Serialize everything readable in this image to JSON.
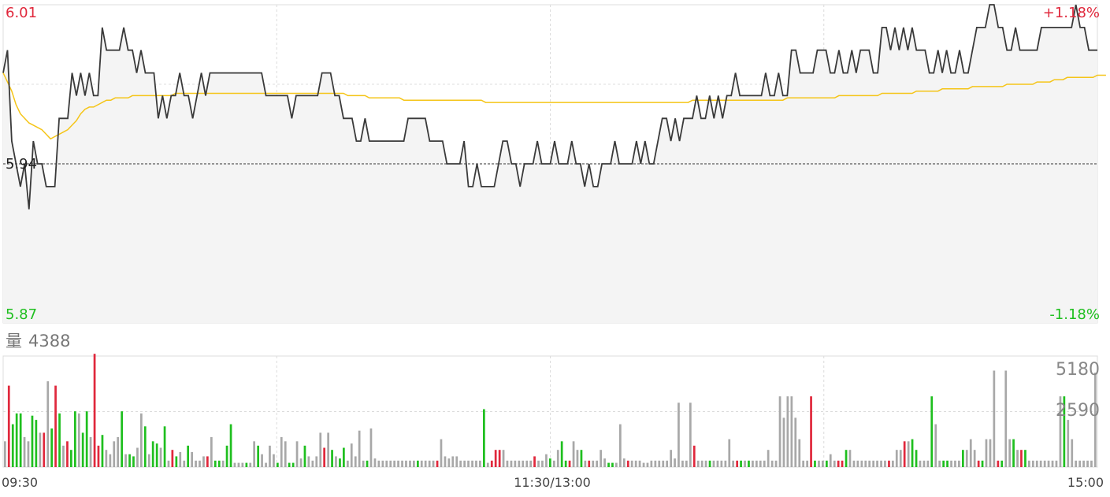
{
  "colors": {
    "up": "#e0283c",
    "down": "#1fbf1f",
    "neutral": "#a8a8a8",
    "price_line": "#3a3a3a",
    "avg_line": "#f5c518",
    "area_fill": "#f4f4f4",
    "grid": "#dcdcdc"
  },
  "chart_data": [
    {
      "type": "line",
      "name": "intraday-price",
      "ymax_label": "6.01",
      "ymin_label": "5.87",
      "ref_label": "5.94",
      "pct_up_label": "+1.18%",
      "pct_down_label": "-1.18%",
      "ylim": [
        5.87,
        6.01
      ],
      "prev_close": 5.94,
      "x_ticks": [
        "09:30",
        "11:30/13:00",
        "15:00"
      ],
      "price": [
        5.98,
        5.99,
        5.95,
        5.94,
        5.93,
        5.94,
        5.92,
        5.95,
        5.94,
        5.94,
        5.93,
        5.93,
        5.93,
        5.96,
        5.96,
        5.96,
        5.98,
        5.97,
        5.98,
        5.97,
        5.98,
        5.97,
        5.97,
        6.0,
        5.99,
        5.99,
        5.99,
        5.99,
        6.0,
        5.99,
        5.99,
        5.98,
        5.99,
        5.98,
        5.98,
        5.98,
        5.96,
        5.97,
        5.96,
        5.97,
        5.97,
        5.98,
        5.97,
        5.97,
        5.96,
        5.97,
        5.98,
        5.97,
        5.98,
        5.98,
        5.98,
        5.98,
        5.98,
        5.98,
        5.98,
        5.98,
        5.98,
        5.98,
        5.98,
        5.98,
        5.98,
        5.97,
        5.97,
        5.97,
        5.97,
        5.97,
        5.97,
        5.96,
        5.97,
        5.97,
        5.97,
        5.97,
        5.97,
        5.97,
        5.98,
        5.98,
        5.98,
        5.97,
        5.97,
        5.96,
        5.96,
        5.96,
        5.95,
        5.95,
        5.96,
        5.95,
        5.95,
        5.95,
        5.95,
        5.95,
        5.95,
        5.95,
        5.95,
        5.95,
        5.96,
        5.96,
        5.96,
        5.96,
        5.96,
        5.95,
        5.95,
        5.95,
        5.95,
        5.94,
        5.94,
        5.94,
        5.94,
        5.95,
        5.93,
        5.93,
        5.94,
        5.93,
        5.93,
        5.93,
        5.93,
        5.94,
        5.95,
        5.95,
        5.94,
        5.94,
        5.93,
        5.94,
        5.94,
        5.94,
        5.95,
        5.94,
        5.94,
        5.94,
        5.95,
        5.94,
        5.94,
        5.94,
        5.95,
        5.94,
        5.94,
        5.93,
        5.94,
        5.93,
        5.93,
        5.94,
        5.94,
        5.94,
        5.95,
        5.94,
        5.94,
        5.94,
        5.94,
        5.95,
        5.94,
        5.95,
        5.94,
        5.94,
        5.95,
        5.96,
        5.96,
        5.95,
        5.96,
        5.95,
        5.96,
        5.96,
        5.96,
        5.97,
        5.96,
        5.96,
        5.97,
        5.96,
        5.97,
        5.96,
        5.97,
        5.97,
        5.98,
        5.97,
        5.97,
        5.97,
        5.97,
        5.97,
        5.97,
        5.98,
        5.97,
        5.97,
        5.98,
        5.97,
        5.97,
        5.99,
        5.99,
        5.98,
        5.98,
        5.98,
        5.98,
        5.99,
        5.99,
        5.99,
        5.98,
        5.98,
        5.99,
        5.98,
        5.98,
        5.99,
        5.98,
        5.99,
        5.99,
        5.99,
        5.98,
        5.98,
        6.0,
        6.0,
        5.99,
        6.0,
        5.99,
        6.0,
        5.99,
        6.0,
        5.99,
        5.99,
        5.99,
        5.98,
        5.98,
        5.99,
        5.98,
        5.99,
        5.98,
        5.98,
        5.99,
        5.98,
        5.98,
        5.99,
        6.0,
        6.0,
        6.0,
        6.01,
        6.01,
        6.0,
        6.0,
        5.99,
        5.99,
        6.0,
        5.99,
        5.99,
        5.99,
        5.99,
        5.99,
        6.0,
        6.0,
        6.0,
        6.0,
        6.0,
        6.0,
        6.0,
        6.0,
        6.01,
        6.0,
        6.0,
        5.99,
        5.99,
        5.99
      ],
      "avg": [
        5.98,
        5.976,
        5.972,
        5.966,
        5.962,
        5.96,
        5.958,
        5.957,
        5.956,
        5.955,
        5.953,
        5.951,
        5.952,
        5.953,
        5.954,
        5.955,
        5.957,
        5.959,
        5.962,
        5.964,
        5.965,
        5.965,
        5.966,
        5.967,
        5.968,
        5.968,
        5.969,
        5.969,
        5.969,
        5.969,
        5.97,
        5.97,
        5.97,
        5.97,
        5.97,
        5.97,
        5.97,
        5.97,
        5.97,
        5.97,
        5.971,
        5.971,
        5.971,
        5.971,
        5.971,
        5.971,
        5.971,
        5.971,
        5.971,
        5.971,
        5.971,
        5.971,
        5.971,
        5.971,
        5.971,
        5.971,
        5.971,
        5.971,
        5.971,
        5.971,
        5.971,
        5.971,
        5.971,
        5.971,
        5.971,
        5.971,
        5.971,
        5.971,
        5.971,
        5.971,
        5.971,
        5.971,
        5.971,
        5.971,
        5.971,
        5.971,
        5.971,
        5.971,
        5.971,
        5.971,
        5.97,
        5.97,
        5.97,
        5.97,
        5.97,
        5.969,
        5.969,
        5.969,
        5.969,
        5.969,
        5.969,
        5.969,
        5.969,
        5.968,
        5.968,
        5.968,
        5.968,
        5.968,
        5.968,
        5.968,
        5.968,
        5.968,
        5.968,
        5.968,
        5.968,
        5.968,
        5.968,
        5.968,
        5.968,
        5.968,
        5.968,
        5.968,
        5.967,
        5.967,
        5.967,
        5.967,
        5.967,
        5.967,
        5.967,
        5.967,
        5.967,
        5.967,
        5.967,
        5.967,
        5.967,
        5.967,
        5.967,
        5.967,
        5.967,
        5.967,
        5.967,
        5.967,
        5.967,
        5.967,
        5.967,
        5.967,
        5.967,
        5.967,
        5.967,
        5.967,
        5.967,
        5.967,
        5.967,
        5.967,
        5.967,
        5.967,
        5.967,
        5.967,
        5.967,
        5.967,
        5.967,
        5.967,
        5.967,
        5.967,
        5.967,
        5.967,
        5.967,
        5.967,
        5.967,
        5.967,
        5.968,
        5.968,
        5.968,
        5.968,
        5.968,
        5.968,
        5.968,
        5.968,
        5.968,
        5.968,
        5.968,
        5.968,
        5.968,
        5.968,
        5.968,
        5.968,
        5.968,
        5.968,
        5.968,
        5.968,
        5.968,
        5.968,
        5.969,
        5.969,
        5.969,
        5.969,
        5.969,
        5.969,
        5.969,
        5.969,
        5.969,
        5.969,
        5.969,
        5.969,
        5.97,
        5.97,
        5.97,
        5.97,
        5.97,
        5.97,
        5.97,
        5.97,
        5.97,
        5.97,
        5.971,
        5.971,
        5.971,
        5.971,
        5.971,
        5.971,
        5.971,
        5.971,
        5.972,
        5.972,
        5.972,
        5.972,
        5.972,
        5.972,
        5.973,
        5.973,
        5.973,
        5.973,
        5.973,
        5.973,
        5.973,
        5.974,
        5.974,
        5.974,
        5.974,
        5.974,
        5.974,
        5.974,
        5.974,
        5.975,
        5.975,
        5.975,
        5.975,
        5.975,
        5.975,
        5.975,
        5.976,
        5.976,
        5.976,
        5.976,
        5.977,
        5.977,
        5.977,
        5.978,
        5.978,
        5.978,
        5.978,
        5.978,
        5.978,
        5.978,
        5.979,
        5.979,
        5.979
      ]
    },
    {
      "type": "bar",
      "name": "intraday-volume",
      "label_prefix": "量",
      "latest_volume_label": "4388",
      "y_ticks": [
        "5180",
        "2590"
      ],
      "ylim": [
        0,
        5180
      ],
      "volume": [
        1200,
        3800,
        2000,
        2500,
        2500,
        1400,
        1200,
        2400,
        2200,
        1600,
        1600,
        4000,
        1800,
        3800,
        2500,
        1000,
        1200,
        800,
        2600,
        2500,
        1600,
        2600,
        1400,
        5300,
        1000,
        1500,
        800,
        600,
        1200,
        1400,
        2600,
        600,
        600,
        500,
        900,
        2500,
        1900,
        600,
        1200,
        1100,
        900,
        1900,
        300,
        800,
        500,
        700,
        300,
        1000,
        700,
        300,
        300,
        500,
        500,
        1400,
        300,
        300,
        300,
        1000,
        2000,
        200,
        200,
        200,
        200,
        200,
        1200,
        1000,
        600,
        200,
        1000,
        600,
        200,
        1400,
        1200,
        200,
        200,
        1200,
        400,
        1000,
        500,
        300,
        500,
        1600,
        900,
        1600,
        800,
        500,
        400,
        900,
        300,
        1100,
        500,
        1700,
        300,
        300,
        1800,
        400,
        300,
        300,
        300,
        300,
        300,
        300,
        300,
        300,
        300,
        300,
        300,
        300,
        300,
        300,
        300,
        300,
        1300,
        500,
        400,
        500,
        500,
        300,
        300,
        300,
        300,
        300,
        300,
        2700,
        200,
        300,
        800,
        800,
        800,
        300,
        300,
        300,
        300,
        300,
        300,
        300,
        500,
        300,
        300,
        600,
        400,
        300,
        800,
        1200,
        300,
        300,
        1200,
        800,
        800,
        300,
        300,
        300,
        300,
        800,
        400,
        200,
        200,
        200,
        2000,
        400,
        300,
        300,
        300,
        300,
        200,
        200,
        300,
        300,
        300,
        300,
        300,
        800,
        400,
        3000,
        300,
        300,
        3000,
        1000,
        300,
        300,
        300,
        300,
        300,
        300,
        300,
        300,
        1300,
        300,
        300,
        300,
        300,
        300,
        300,
        300,
        300,
        300,
        800,
        300,
        300,
        3300,
        2300,
        3300,
        3300,
        2300,
        1300,
        300,
        300,
        3300,
        300,
        300,
        300,
        300,
        600,
        300,
        300,
        300,
        800,
        800,
        300,
        300,
        300,
        300,
        300,
        300,
        300,
        300,
        300,
        300,
        300,
        800,
        800,
        1200,
        1200,
        1300,
        800,
        300,
        300,
        300,
        3300,
        2000,
        300,
        300,
        300,
        300,
        300,
        300,
        800,
        800,
        1300,
        800,
        300,
        300,
        1300,
        1300,
        4500,
        300,
        300,
        4500,
        1300,
        1300,
        800,
        800,
        800,
        300,
        300,
        300,
        300,
        300,
        300,
        300,
        300,
        3300,
        3300,
        2200,
        1300,
        300,
        300,
        300,
        300,
        300,
        4400
      ],
      "direction": [
        0,
        1,
        2,
        2,
        2,
        0,
        0,
        2,
        2,
        0,
        1,
        0,
        2,
        1,
        2,
        0,
        1,
        2,
        2,
        0,
        2,
        2,
        0,
        1,
        1,
        2,
        0,
        0,
        0,
        0,
        2,
        0,
        2,
        2,
        0,
        0,
        2,
        0,
        2,
        2,
        0,
        2,
        0,
        1,
        2,
        0,
        0,
        2,
        0,
        0,
        0,
        0,
        1,
        0,
        2,
        2,
        0,
        2,
        2,
        0,
        0,
        0,
        2,
        0,
        0,
        2,
        0,
        0,
        0,
        0,
        2,
        0,
        0,
        2,
        2,
        0,
        0,
        2,
        0,
        0,
        0,
        0,
        1,
        0,
        2,
        0,
        2,
        2,
        0,
        0,
        0,
        0,
        0,
        2,
        0,
        0,
        0,
        0,
        0,
        0,
        0,
        0,
        0,
        0,
        0,
        0,
        2,
        0,
        0,
        0,
        0,
        1,
        0,
        0,
        0,
        0,
        0,
        0,
        0,
        0,
        0,
        0,
        0,
        2,
        0,
        1,
        1,
        1,
        0,
        0,
        0,
        0,
        0,
        0,
        0,
        0,
        1,
        0,
        0,
        0,
        2,
        0,
        0,
        2,
        2,
        1,
        0,
        0,
        2,
        0,
        1,
        0,
        0,
        0,
        0,
        2,
        2,
        0,
        0,
        0,
        1,
        0,
        0,
        0,
        0,
        0,
        0,
        0,
        0,
        0,
        0,
        0,
        0,
        0,
        0,
        0,
        0,
        1,
        0,
        0,
        0,
        2,
        0,
        0,
        0,
        0,
        0,
        0,
        1,
        2,
        0,
        2,
        0,
        0,
        0,
        0,
        0,
        0,
        0,
        0,
        0,
        0,
        0,
        0,
        0,
        0,
        0,
        1,
        2,
        0,
        0,
        2,
        0,
        0,
        1,
        1,
        2,
        0,
        0,
        0,
        0,
        0,
        0,
        0,
        0,
        0,
        0,
        1,
        0,
        0,
        0,
        1,
        0,
        2,
        2,
        0,
        0,
        0,
        2,
        0,
        0,
        2,
        2,
        0,
        0,
        0,
        2,
        0,
        0,
        0,
        1,
        2,
        0,
        0,
        0,
        1,
        2,
        0,
        0,
        2,
        0,
        1,
        2,
        0,
        0,
        0,
        0,
        0,
        0,
        0,
        0,
        0,
        2,
        0,
        0,
        0,
        0,
        0,
        0,
        0,
        0,
        0
      ]
    }
  ]
}
